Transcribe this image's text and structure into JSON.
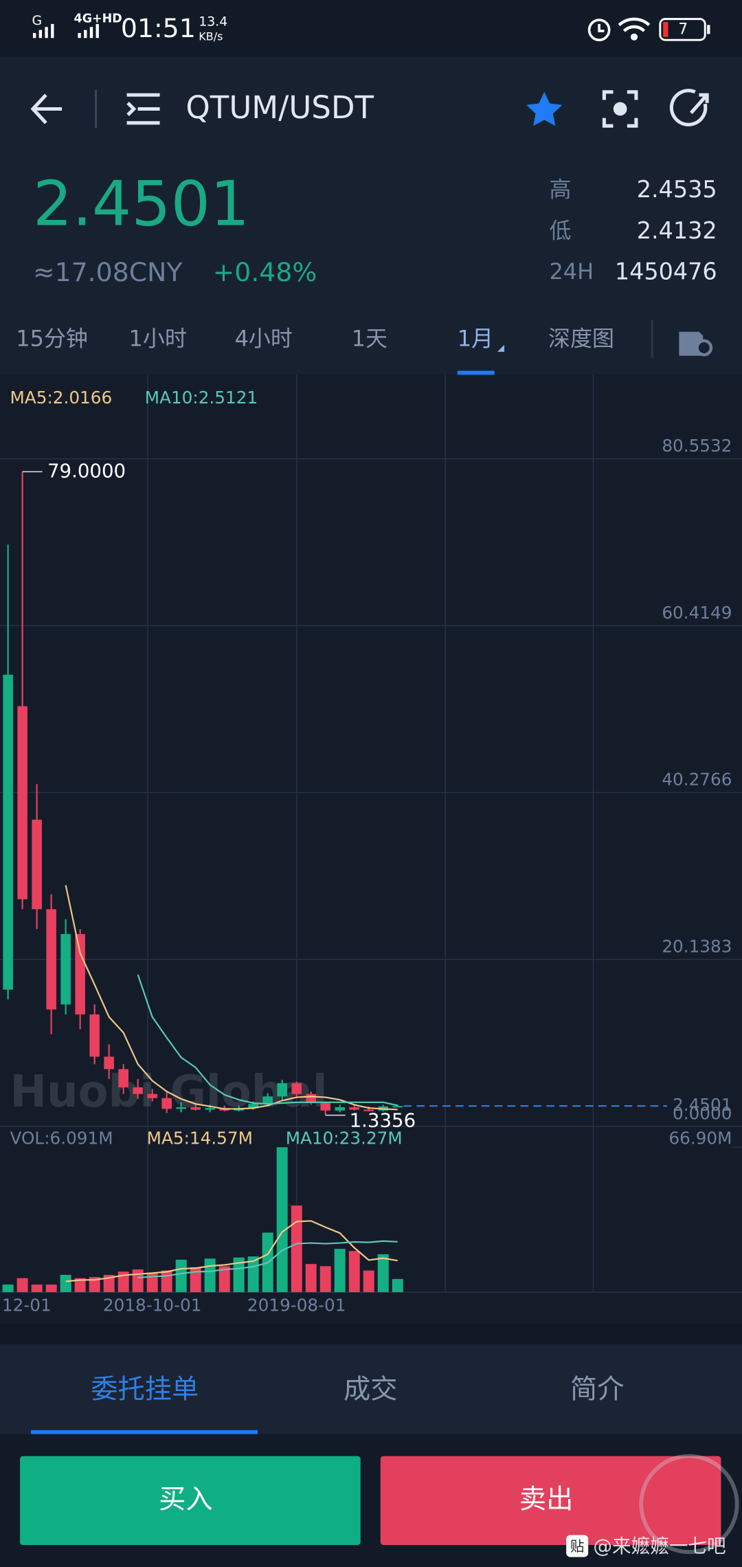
{
  "status_bar": {
    "carrier": "G",
    "network": "4G+HD",
    "time": "01:51",
    "speed": "13.4",
    "speed_unit": "KB/s",
    "battery": "7"
  },
  "header": {
    "pair": "QTUM/USDT"
  },
  "ticker": {
    "price": "2.4501",
    "cny": "≈17.08CNY",
    "change": "+0.48%",
    "high_label": "高",
    "high": "2.4535",
    "low_label": "低",
    "low": "2.4132",
    "vol_label": "24H",
    "vol": "1450476"
  },
  "intervals": [
    "15分钟",
    "1小时",
    "4小时",
    "1天",
    "1月",
    "深度图"
  ],
  "chart_data": {
    "type": "candlestick",
    "categories": [
      "12-01",
      null,
      null,
      null,
      null,
      null,
      null,
      null,
      null,
      null,
      "2018-10-01",
      null,
      null,
      null,
      null,
      null,
      null,
      null,
      null,
      null,
      "2019-08-01",
      null,
      null,
      null,
      null,
      null,
      null,
      null
    ],
    "open": [
      16.5,
      50.7,
      37.0,
      26.2,
      14.7,
      23.2,
      13.5,
      8.4,
      6.9,
      4.7,
      3.9,
      3.4,
      2.1,
      2.3,
      2.0,
      2.2,
      1.9,
      2.2,
      2.7,
      3.6,
      5.2,
      3.9,
      2.8,
      1.9,
      2.3,
      2.0,
      1.9,
      2.4
    ],
    "high": [
      70.2,
      79.0,
      41.3,
      28.0,
      25.0,
      23.8,
      14.7,
      9.9,
      7.5,
      5.7,
      4.5,
      4.2,
      2.9,
      2.8,
      2.6,
      2.5,
      2.5,
      3.0,
      4.0,
      5.6,
      5.4,
      4.2,
      3.0,
      2.6,
      2.7,
      2.4,
      2.6,
      2.6
    ],
    "low": [
      15.3,
      26.2,
      23.8,
      11.1,
      13.5,
      11.7,
      7.5,
      5.7,
      3.9,
      3.3,
      3.0,
      1.6,
      1.7,
      1.9,
      1.7,
      1.8,
      1.8,
      2.0,
      2.4,
      3.2,
      3.6,
      2.6,
      1.3356,
      1.7,
      1.9,
      1.8,
      1.8,
      2.3
    ],
    "close": [
      54.5,
      27.4,
      26.2,
      14.1,
      23.2,
      13.5,
      8.4,
      6.9,
      4.7,
      3.9,
      3.4,
      2.1,
      2.3,
      2.0,
      2.2,
      1.9,
      2.2,
      2.7,
      3.6,
      5.2,
      3.9,
      2.8,
      1.9,
      2.3,
      2.0,
      1.9,
      2.4,
      2.4501
    ],
    "up_color": "#14b083",
    "down_color": "#e8405e",
    "series": [
      {
        "name": "MA5:2.0166",
        "color": "#f0c987",
        "values": [
          null,
          null,
          null,
          null,
          29.1,
          20.9,
          17.1,
          13.2,
          11.3,
          7.5,
          5.5,
          4.2,
          3.3,
          2.7,
          2.4,
          2.1,
          2.1,
          2.2,
          2.5,
          3.1,
          3.5,
          3.6,
          3.5,
          3.2,
          2.6,
          2.2,
          2.1,
          2.0166
        ]
      },
      {
        "name": "MA10:2.5121",
        "color": "#58c9b5",
        "values": [
          null,
          null,
          null,
          null,
          null,
          null,
          null,
          null,
          null,
          18.3,
          13.2,
          10.7,
          8.3,
          7.1,
          5.0,
          3.8,
          3.2,
          2.8,
          2.7,
          2.8,
          2.9,
          2.9,
          2.9,
          2.9,
          2.9,
          2.9,
          2.9,
          2.5121
        ]
      }
    ],
    "ylim": [
      0,
      90.1
    ],
    "yticks": [
      {
        "value": 0,
        "label": "0.0000"
      },
      20.1383,
      40.2766,
      60.4149,
      80.5532
    ],
    "grid": true,
    "price_line": 2.4501,
    "max_label": "79.0000",
    "min_label": "1.3356",
    "volume": {
      "label": "VOL:6.091M",
      "values": [
        3.5,
        6.5,
        3.5,
        3.5,
        8.0,
        6.5,
        7.0,
        8.0,
        9.5,
        10.5,
        9.0,
        10.0,
        15.0,
        11.5,
        15.5,
        12.0,
        16.0,
        16.5,
        27.5,
        66.9,
        40.0,
        13.0,
        12.0,
        20.0,
        19.0,
        10.0,
        17.5,
        6.091
      ],
      "ylim": [
        0,
        75.2
      ],
      "yticks": [
        {
          "value": 66.9,
          "label": "66.90M"
        }
      ],
      "series": [
        {
          "name": "MA5:14.57M",
          "color": "#f0c987",
          "values": [
            null,
            null,
            null,
            null,
            5.0,
            5.6,
            5.7,
            6.6,
            7.8,
            8.3,
            8.8,
            9.4,
            10.8,
            11.1,
            12.1,
            12.6,
            13.5,
            14.3,
            17.5,
            27.8,
            32.6,
            32.9,
            30.0,
            27.3,
            20.5,
            14.8,
            15.7,
            14.57
          ]
        },
        {
          "name": "MA10:23.27M",
          "color": "#58c9b5",
          "values": [
            null,
            null,
            null,
            null,
            null,
            null,
            null,
            null,
            null,
            6.7,
            7.2,
            7.5,
            8.6,
            9.4,
            9.6,
            10.5,
            10.9,
            11.8,
            13.6,
            19.3,
            22.4,
            22.7,
            22.4,
            22.7,
            23.2,
            23.0,
            23.6,
            23.27
          ]
        }
      ]
    }
  },
  "tabs": [
    "委托挂单",
    "成交",
    "简介"
  ],
  "buttons": {
    "buy": "买入",
    "sell": "卖出"
  },
  "watermark": {
    "logo": "Huobi Global",
    "badge": "贴",
    "credit": "@来嬷嬷一七吧"
  }
}
